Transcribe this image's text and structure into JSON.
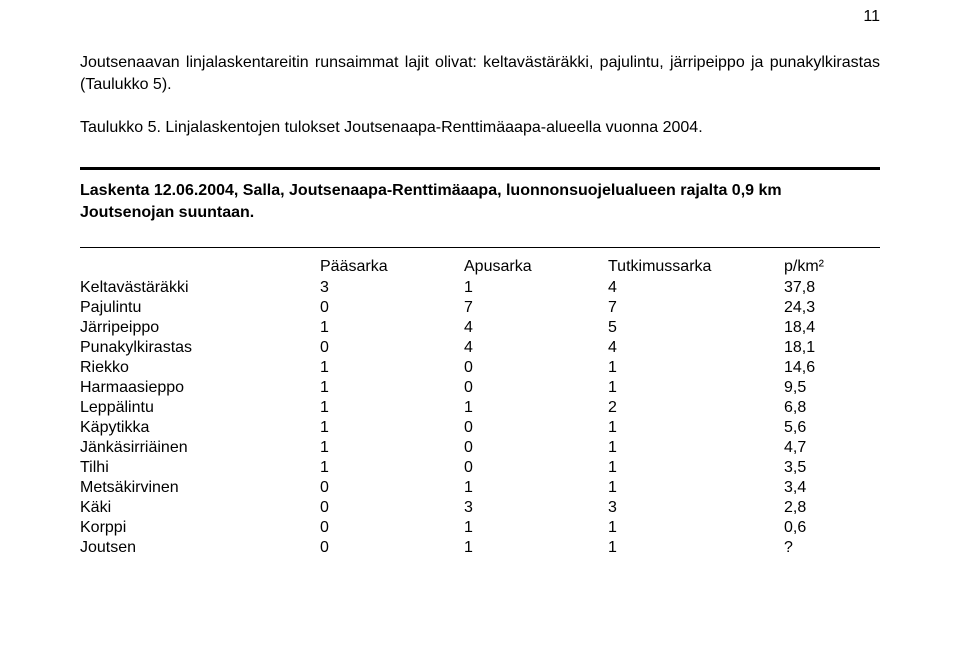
{
  "page_number": "11",
  "paragraph1": "Joutsenaavan linjalaskentareitin runsaimmat lajit olivat: keltavästäräkki, pajulintu, järripeippo ja punakylkirastas (Taulukko 5).",
  "paragraph2": "Taulukko 5. Linjalaskentojen tulokset Joutsenaapa-Renttimäaapa-alueella vuonna 2004.",
  "section_title": "Laskenta 12.06.2004, Salla, Joutsenaapa-Renttimäaapa, luonnonsuojelualueen rajalta 0,9 km Joutsenojan suuntaan.",
  "table": {
    "columns": [
      "",
      "Pääsarka",
      "Apusarka",
      "Tutkimussarka",
      "p/km²"
    ],
    "rows": [
      [
        "Keltavästäräkki",
        "3",
        "1",
        "4",
        "37,8"
      ],
      [
        "Pajulintu",
        "0",
        "7",
        "7",
        "24,3"
      ],
      [
        "Järripeippo",
        "1",
        "4",
        "5",
        "18,4"
      ],
      [
        "Punakylkirastas",
        "0",
        "4",
        "4",
        "18,1"
      ],
      [
        "Riekko",
        "1",
        "0",
        "1",
        "14,6"
      ],
      [
        "Harmaasieppo",
        "1",
        "0",
        "1",
        "9,5"
      ],
      [
        "Leppälintu",
        "1",
        "1",
        "2",
        "6,8"
      ],
      [
        "Käpytikka",
        "1",
        "0",
        "1",
        "5,6"
      ],
      [
        "Jänkäsirriäinen",
        "1",
        "0",
        "1",
        "4,7"
      ],
      [
        "Tilhi",
        "1",
        "0",
        "1",
        "3,5"
      ],
      [
        "Metsäkirvinen",
        "0",
        "1",
        "1",
        "3,4"
      ],
      [
        "Käki",
        "0",
        "3",
        "3",
        "2,8"
      ],
      [
        "Korppi",
        "0",
        "1",
        "1",
        "0,6"
      ],
      [
        "Joutsen",
        "0",
        "1",
        "1",
        "?"
      ]
    ]
  }
}
